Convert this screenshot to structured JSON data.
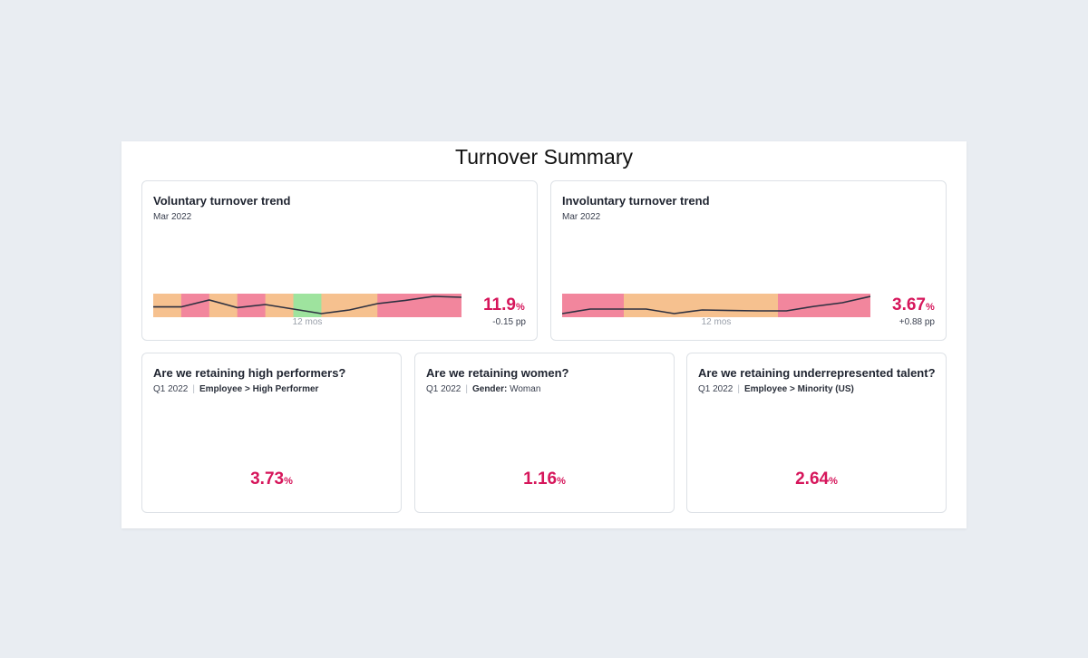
{
  "panel": {
    "title": "Turnover Summary"
  },
  "colors": {
    "red": "#f2869d",
    "orange": "#f6c18f",
    "green": "#9ee39e",
    "accent": "#d6165b",
    "line": "#2d3040"
  },
  "voluntary": {
    "title": "Voluntary turnover trend",
    "period": "Mar 2022",
    "caption": "12 mos",
    "value": "11.9",
    "unit": "%",
    "delta": "-0.15 pp",
    "bands": [
      "orange",
      "red",
      "orange",
      "red",
      "orange",
      "green",
      "orange",
      "orange",
      "red",
      "red",
      "red"
    ],
    "line": [
      0.42,
      0.42,
      0.8,
      0.38,
      0.55,
      0.3,
      0.05,
      0.25,
      0.6,
      0.78,
      1.0,
      0.95
    ]
  },
  "involuntary": {
    "title": "Involuntary turnover trend",
    "period": "Mar 2022",
    "caption": "12 mos",
    "value": "3.67",
    "unit": "%",
    "delta": "+0.88 pp",
    "bands": [
      "red",
      "red",
      "orange",
      "orange",
      "orange",
      "orange",
      "orange",
      "red",
      "red",
      "red"
    ],
    "line": [
      0.05,
      0.3,
      0.3,
      0.3,
      0.05,
      0.25,
      0.22,
      0.2,
      0.2,
      0.45,
      0.65,
      1.0
    ]
  },
  "retain_high": {
    "title": "Are we retaining high performers?",
    "period": "Q1 2022",
    "filter": "Employee > High Performer",
    "value": "3.73",
    "unit": "%"
  },
  "retain_women": {
    "title": "Are we retaining women?",
    "period": "Q1 2022",
    "filter_key": "Gender:",
    "filter_val": "Woman",
    "value": "1.16",
    "unit": "%"
  },
  "retain_minority": {
    "title": "Are we retaining underrepresented talent?",
    "period": "Q1 2022",
    "filter": "Employee > Minority (US)",
    "value": "2.64",
    "unit": "%"
  }
}
